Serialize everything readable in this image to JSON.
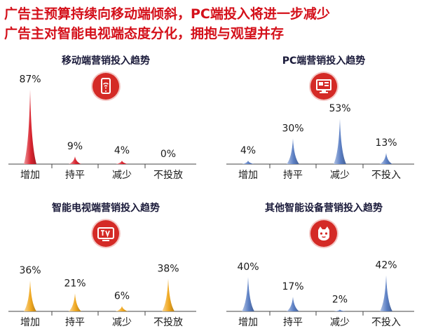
{
  "headline": {
    "line1": "广告主预算持续向移动端倾斜，PC端投入将进一步减少",
    "line2": "广告主对智能电视端态度分化，拥抱与观望并存"
  },
  "colors": {
    "headline": "#d4101a",
    "mobile": "#d9242f",
    "pc": "#5b7fc4",
    "tv": "#f0a820",
    "other": "#5b7fc4"
  },
  "chart_data": [
    {
      "type": "bar",
      "title": "移动端营销投入趋势",
      "icon": "smartphone-icon",
      "color": "#d9242f",
      "categories": [
        "增加",
        "持平",
        "减少",
        "不投放"
      ],
      "values": [
        87,
        9,
        4,
        0
      ],
      "labels": [
        "87%",
        "9%",
        "4%",
        "0%"
      ],
      "ylim": [
        0,
        90
      ]
    },
    {
      "type": "bar",
      "title": "PC端营销投入趋势",
      "icon": "monitor-icon",
      "color": "#5b7fc4",
      "categories": [
        "增加",
        "持平",
        "减少",
        "不投入"
      ],
      "values": [
        4,
        30,
        53,
        13
      ],
      "labels": [
        "4%",
        "30%",
        "53%",
        "13%"
      ],
      "ylim": [
        0,
        90
      ]
    },
    {
      "type": "bar",
      "title": "智能电视端营销投入趋势",
      "icon": "tv-icon",
      "color": "#f0a820",
      "categories": [
        "增加",
        "持平",
        "减少",
        "不投放"
      ],
      "values": [
        36,
        21,
        6,
        38
      ],
      "labels": [
        "36%",
        "21%",
        "6%",
        "38%"
      ],
      "ylim": [
        0,
        90
      ]
    },
    {
      "type": "bar",
      "title": "其他智能设备营销投入趋势",
      "icon": "robot-icon",
      "color": "#5b7fc4",
      "categories": [
        "增加",
        "持平",
        "减少",
        "不投入"
      ],
      "values": [
        40,
        17,
        2,
        42
      ],
      "labels": [
        "40%",
        "17%",
        "2%",
        "42%"
      ],
      "ylim": [
        0,
        90
      ]
    }
  ]
}
